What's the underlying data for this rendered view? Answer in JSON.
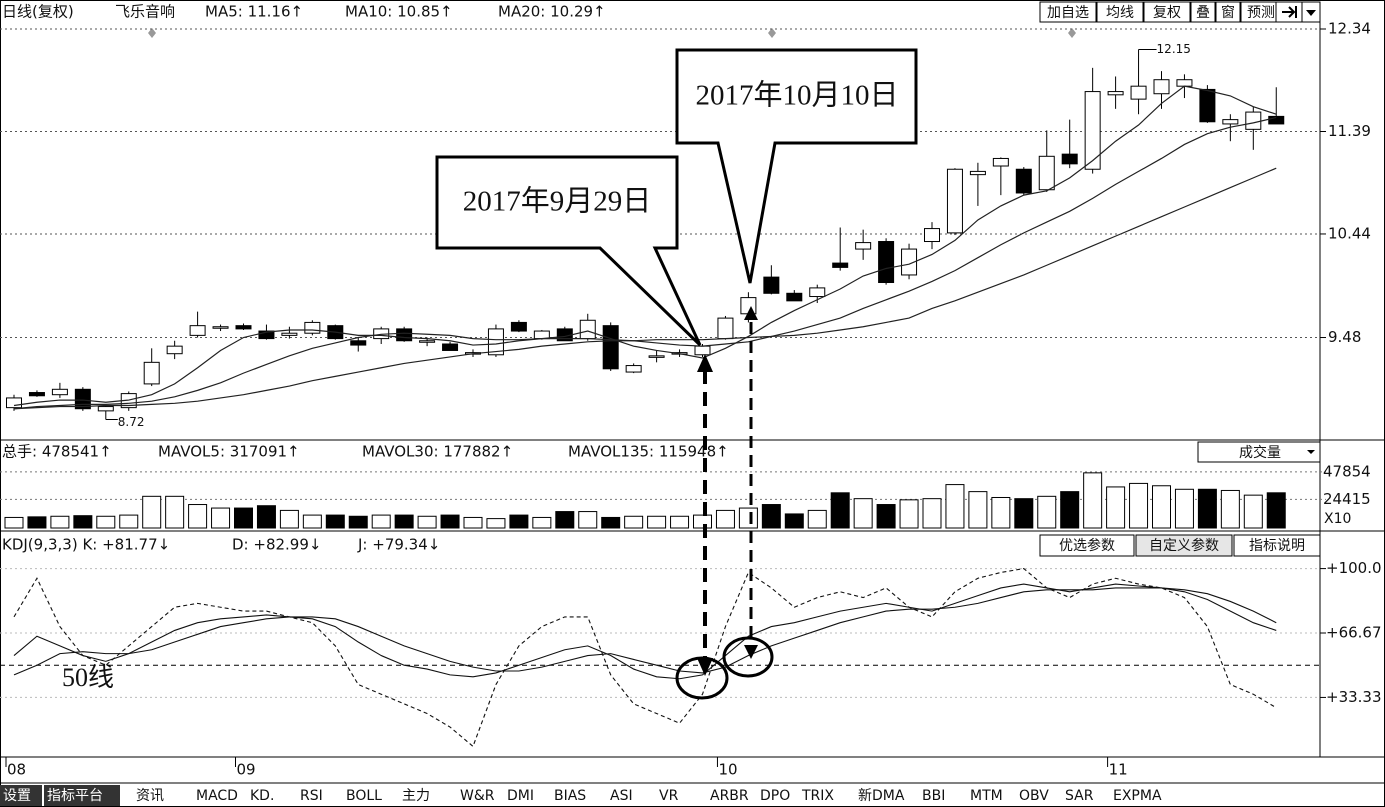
{
  "header": {
    "period": "日线(复权)",
    "stock": "飞乐音响",
    "ma": [
      "MA5: 11.16↑",
      "MA10: 10.85↑",
      "MA20: 10.29↑"
    ],
    "buttons": [
      "加自选",
      "均线",
      "复权",
      "叠",
      "窗",
      "预测"
    ]
  },
  "volume_header": {
    "items": [
      "总手: 478541↑",
      "MAVOL5: 317091↑",
      "MAVOL30: 177882↑",
      "MAVOL135: 115948↑"
    ],
    "selector": "成交量",
    "unit": "X10"
  },
  "kdj_header": {
    "items": [
      "KDJ(9,3,3) K: +81.77↓",
      "D: +82.99↓",
      "J: +79.34↓"
    ],
    "buttons": [
      "优选参数",
      "自定义参数",
      "指标说明"
    ]
  },
  "annotations": {
    "callouts": [
      "2017年9月29日",
      "2017年10月10日"
    ],
    "line_label": "50线"
  },
  "tabs": [
    "设置",
    "指标平台",
    "资讯",
    "MACD",
    "KD.",
    "RSI",
    "BOLL",
    "主力",
    "W&R",
    "DMI",
    "BIAS",
    "ASI",
    "VR",
    "ARBR",
    "DPO",
    "TRIX",
    "新DMA",
    "BBI",
    "MTM",
    "OBV",
    "SAR",
    "EXPMA"
  ],
  "chart_data": [
    {
      "type": "candlestick",
      "ylim": [
        8.53,
        12.405
      ],
      "yticks": [
        12.34,
        11.39,
        10.44,
        9.48
      ],
      "grid": true,
      "up_color": "#ffffff",
      "down_color": "#000000",
      "max_label": 12.15,
      "min_label": 8.72,
      "categories": [
        "08",
        null,
        null,
        null,
        null,
        null,
        null,
        null,
        null,
        null,
        "09",
        null,
        null,
        null,
        null,
        null,
        null,
        null,
        null,
        null,
        null,
        null,
        null,
        null,
        null,
        null,
        null,
        null,
        null,
        null,
        null,
        "10",
        null,
        null,
        null,
        null,
        null,
        null,
        null,
        null,
        null,
        null,
        null,
        null,
        null,
        null,
        null,
        null,
        "11",
        null,
        null,
        null,
        null,
        null,
        null,
        null
      ],
      "open": [
        8.83,
        8.97,
        8.95,
        9.0,
        8.8,
        8.83,
        9.05,
        9.33,
        9.5,
        9.57,
        9.59,
        9.54,
        9.5,
        9.52,
        9.59,
        9.45,
        9.47,
        9.56,
        9.44,
        9.42,
        9.33,
        9.32,
        9.62,
        9.47,
        9.56,
        9.47,
        9.59,
        9.16,
        9.3,
        9.33,
        9.32,
        9.47,
        9.7,
        10.04,
        9.89,
        9.86,
        10.17,
        10.3,
        10.37,
        10.06,
        10.37,
        10.45,
        10.99,
        11.07,
        11.04,
        10.85,
        11.18,
        11.04,
        11.73,
        11.69,
        11.74,
        11.81,
        11.78,
        11.46,
        11.41,
        11.53
      ],
      "high": [
        8.95,
        8.99,
        9.06,
        9.02,
        8.86,
        8.98,
        9.38,
        9.45,
        9.72,
        9.6,
        9.61,
        9.6,
        9.58,
        9.64,
        9.6,
        9.48,
        9.58,
        9.58,
        9.48,
        9.44,
        9.37,
        9.6,
        9.64,
        9.55,
        9.58,
        9.7,
        9.62,
        9.24,
        9.36,
        9.37,
        9.42,
        9.68,
        9.9,
        10.15,
        9.92,
        9.97,
        10.5,
        10.48,
        10.4,
        10.35,
        10.55,
        11.05,
        11.1,
        11.15,
        11.06,
        11.4,
        11.5,
        11.98,
        11.9,
        12.15,
        11.95,
        11.92,
        11.82,
        11.55,
        11.62,
        11.8
      ],
      "low": [
        8.8,
        8.93,
        8.92,
        8.8,
        8.72,
        8.8,
        9.03,
        9.28,
        9.48,
        9.54,
        9.55,
        9.46,
        9.47,
        9.5,
        9.46,
        9.35,
        9.42,
        9.44,
        9.4,
        9.36,
        9.3,
        9.3,
        9.53,
        9.46,
        9.45,
        9.45,
        9.17,
        9.15,
        9.25,
        9.3,
        9.3,
        9.46,
        9.62,
        9.88,
        9.82,
        9.8,
        10.1,
        10.2,
        9.97,
        10.02,
        10.3,
        10.43,
        10.7,
        10.8,
        10.8,
        10.83,
        11.05,
        11.0,
        11.6,
        11.55,
        11.6,
        11.7,
        11.47,
        11.3,
        11.22,
        11.47
      ],
      "close": [
        8.92,
        8.94,
        9.0,
        8.82,
        8.84,
        8.96,
        9.25,
        9.4,
        9.59,
        9.58,
        9.56,
        9.47,
        9.52,
        9.62,
        9.47,
        9.41,
        9.56,
        9.45,
        9.45,
        9.36,
        9.34,
        9.56,
        9.54,
        9.54,
        9.45,
        9.64,
        9.19,
        9.22,
        9.31,
        9.34,
        9.4,
        9.66,
        9.85,
        9.89,
        9.82,
        9.94,
        10.13,
        10.36,
        9.99,
        10.3,
        10.49,
        11.04,
        11.02,
        11.14,
        10.82,
        11.16,
        11.09,
        11.76,
        11.76,
        11.81,
        11.87,
        11.87,
        11.48,
        11.5,
        11.57,
        11.46
      ],
      "series": [
        {
          "color": "#222222",
          "values": [
            8.85,
            8.88,
            8.9,
            8.9,
            8.88,
            8.9,
            8.95,
            9.05,
            9.2,
            9.36,
            9.48,
            9.53,
            9.55,
            9.55,
            9.53,
            9.5,
            9.5,
            9.48,
            9.47,
            9.45,
            9.41,
            9.42,
            9.45,
            9.47,
            9.49,
            9.54,
            9.47,
            9.4,
            9.36,
            9.33,
            9.29,
            9.38,
            9.49,
            9.62,
            9.73,
            9.83,
            9.93,
            10.05,
            10.12,
            10.16,
            10.25,
            10.38,
            10.57,
            10.7,
            10.8,
            10.84,
            10.96,
            11.12,
            11.3,
            11.45,
            11.65,
            11.81,
            11.77,
            11.72,
            11.62,
            11.55
          ]
        },
        {
          "color": "#222222",
          "values": [
            8.82,
            8.84,
            8.85,
            8.86,
            8.86,
            8.87,
            8.89,
            8.93,
            8.99,
            9.06,
            9.15,
            9.23,
            9.31,
            9.38,
            9.43,
            9.48,
            9.51,
            9.52,
            9.51,
            9.5,
            9.47,
            9.46,
            9.46,
            9.47,
            9.47,
            9.47,
            9.46,
            9.45,
            9.43,
            9.41,
            9.4,
            9.42,
            9.44,
            9.49,
            9.54,
            9.6,
            9.66,
            9.75,
            9.83,
            9.91,
            10.0,
            10.1,
            10.22,
            10.34,
            10.45,
            10.55,
            10.65,
            10.77,
            10.9,
            11.02,
            11.14,
            11.27,
            11.37,
            11.43,
            11.47,
            11.52
          ]
        },
        {
          "color": "#222222",
          "values": [
            8.82,
            8.83,
            8.84,
            8.84,
            8.85,
            8.85,
            8.86,
            8.87,
            8.89,
            8.92,
            8.95,
            8.99,
            9.03,
            9.08,
            9.12,
            9.16,
            9.2,
            9.24,
            9.27,
            9.3,
            9.33,
            9.35,
            9.37,
            9.4,
            9.42,
            9.44,
            9.45,
            9.45,
            9.46,
            9.46,
            9.46,
            9.47,
            9.48,
            9.49,
            9.5,
            9.52,
            9.55,
            9.58,
            9.62,
            9.66,
            9.75,
            9.82,
            9.9,
            9.98,
            10.06,
            10.15,
            10.24,
            10.33,
            10.42,
            10.51,
            10.6,
            10.69,
            10.78,
            10.87,
            10.96,
            11.05
          ]
        }
      ]
    },
    {
      "type": "bar",
      "ylim": [
        0,
        56250
      ],
      "yticks": [
        47854,
        24415
      ],
      "values": [
        9000,
        9500,
        10000,
        10500,
        10000,
        11000,
        27000,
        27000,
        20000,
        17000,
        17000,
        19000,
        15000,
        11000,
        11000,
        10000,
        11000,
        11000,
        10000,
        11000,
        9000,
        8000,
        11000,
        9000,
        14000,
        14000,
        9000,
        10000,
        10000,
        10000,
        11000,
        15000,
        17000,
        20000,
        12000,
        15000,
        30000,
        25000,
        20000,
        24000,
        25000,
        37000,
        31000,
        26000,
        25000,
        27000,
        31000,
        47000,
        35000,
        38000,
        36000,
        33000,
        33000,
        32000,
        28000,
        30000
      ]
    },
    {
      "type": "line",
      "ylim": [
        2.5,
        106
      ],
      "yticks": [
        {
          "value": 100,
          "label": "+100.0"
        },
        {
          "value": 66.67,
          "label": "+66.67"
        },
        {
          "value": 33.33,
          "label": "+33.33"
        }
      ],
      "ref_line": 50,
      "series": [
        {
          "color": "#111111",
          "style": "solid",
          "values": [
            55,
            65,
            60,
            55,
            52,
            56,
            62,
            68,
            72,
            74,
            75,
            76,
            75,
            74,
            70,
            62,
            55,
            50,
            48,
            45,
            44,
            46,
            50,
            54,
            58,
            60,
            55,
            48,
            44,
            43,
            45,
            55,
            65,
            70,
            72,
            75,
            78,
            80,
            82,
            80,
            78,
            82,
            86,
            90,
            92,
            90,
            88,
            90,
            92,
            91,
            90,
            88,
            84,
            78,
            72,
            68
          ]
        },
        {
          "color": "#111111",
          "style": "solid",
          "values": [
            45,
            50,
            56,
            57,
            56,
            56,
            58,
            62,
            66,
            70,
            72,
            74,
            75,
            75,
            74,
            70,
            65,
            60,
            56,
            52,
            49,
            47,
            47,
            49,
            52,
            55,
            56,
            53,
            50,
            47,
            46,
            49,
            55,
            60,
            64,
            68,
            72,
            75,
            78,
            79,
            79,
            80,
            82,
            85,
            88,
            89,
            89,
            89,
            90,
            90,
            90,
            89,
            87,
            83,
            78,
            72
          ]
        },
        {
          "color": "#111111",
          "style": "dashed",
          "values": [
            75,
            95,
            70,
            55,
            50,
            60,
            70,
            80,
            82,
            80,
            78,
            78,
            75,
            72,
            60,
            40,
            35,
            30,
            25,
            18,
            8,
            40,
            60,
            70,
            75,
            75,
            45,
            30,
            25,
            20,
            35,
            70,
            98,
            90,
            80,
            85,
            88,
            85,
            90,
            80,
            75,
            88,
            95,
            98,
            100,
            90,
            85,
            92,
            95,
            92,
            90,
            85,
            70,
            40,
            35,
            28
          ]
        }
      ]
    }
  ]
}
